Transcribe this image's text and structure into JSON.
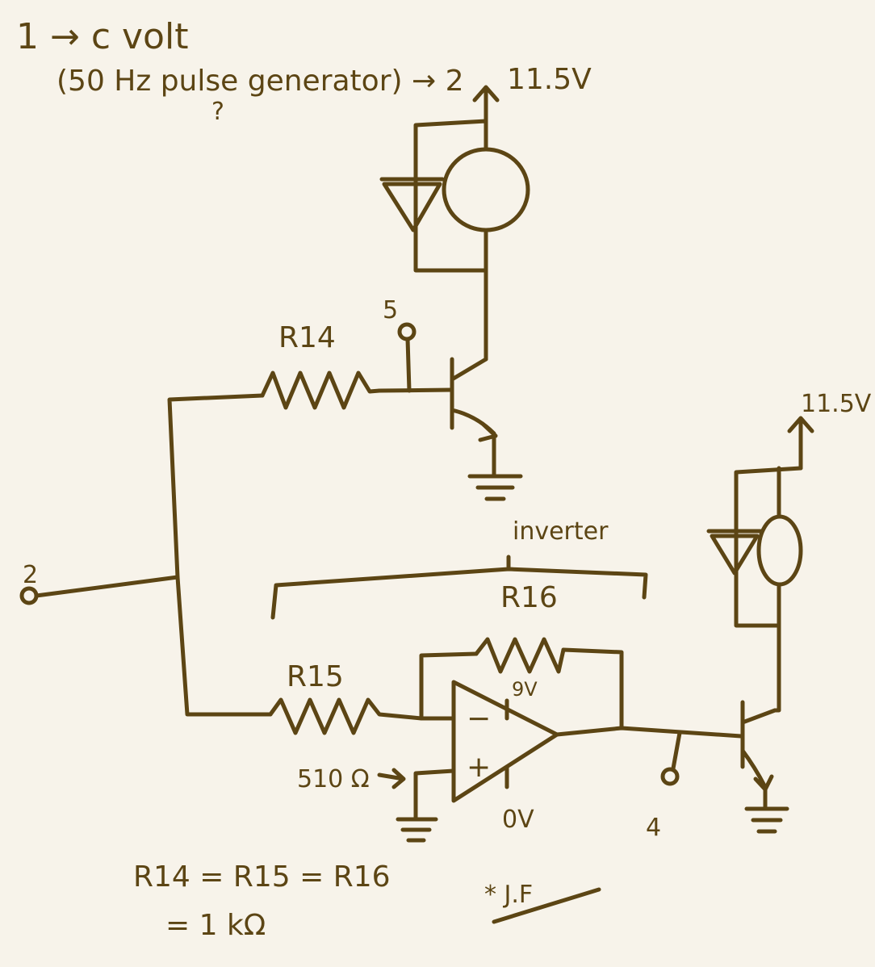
{
  "notes": {
    "line1": "1 → c volt",
    "line2": "(50 Hz pulse generator) → 2",
    "qmark": "?",
    "supply_top": "11.5V",
    "supply_right": "11.5V",
    "node5": "5",
    "node2": "2",
    "node4": "4",
    "inverter": "inverter",
    "r14": "R14",
    "r15": "R15",
    "r16": "R16",
    "opamp_vplus": "9V",
    "opamp_vminus": "0V",
    "minus": "−",
    "plus": "+",
    "r_plus_in": "510 Ω",
    "eq_line1": "R14 = R15 = R16",
    "eq_line2": "= 1 kΩ",
    "signature": "* J.F"
  },
  "colors": {
    "ink": "#5c4514",
    "paper": "#f7f3ea"
  }
}
